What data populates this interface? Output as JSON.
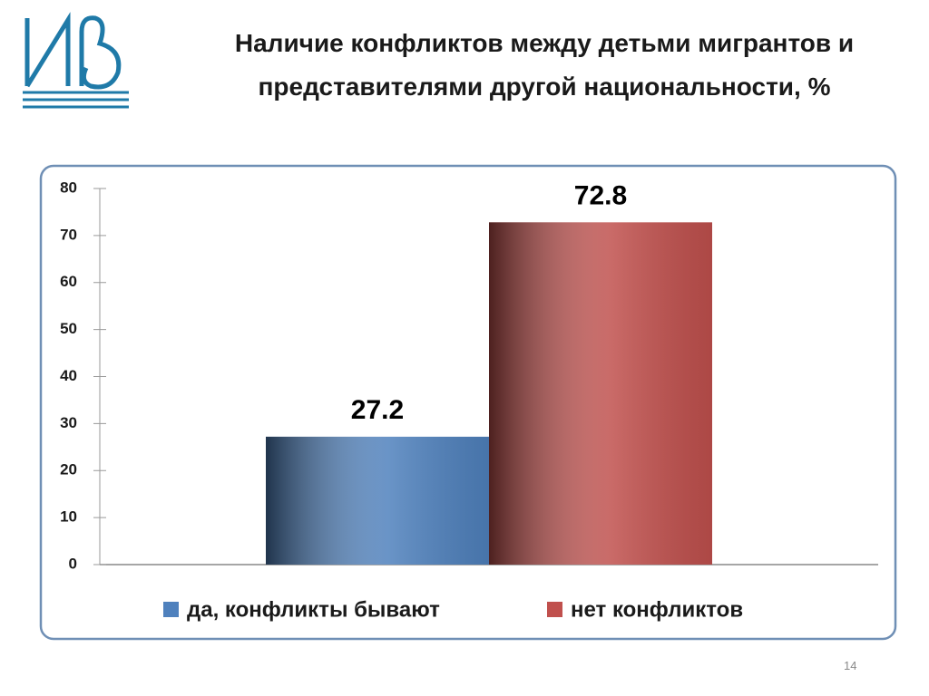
{
  "chart_data": {
    "type": "bar",
    "title": "Наличие конфликтов между детьми мигрантов и представителями другой национальности, %",
    "categories": [
      null
    ],
    "series": [
      {
        "name": "да, конфликты бывают",
        "color": "#4f81bd",
        "values": [
          27.2
        ]
      },
      {
        "name": "нет конфликтов",
        "color": "#c0504d",
        "values": [
          72.8
        ]
      }
    ],
    "ylim": [
      0,
      80
    ],
    "yticks": [
      0,
      10,
      20,
      30,
      40,
      50,
      60,
      70,
      80
    ],
    "grid": false,
    "legend": "bottom"
  },
  "slide_number": "14"
}
